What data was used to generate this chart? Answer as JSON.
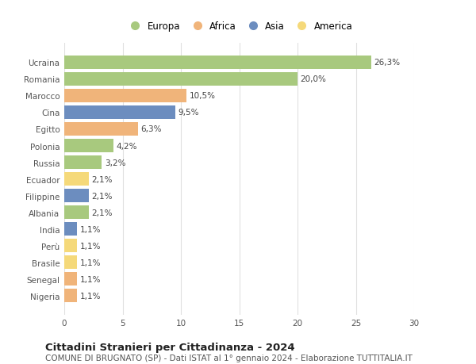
{
  "countries": [
    "Ucraina",
    "Romania",
    "Marocco",
    "Cina",
    "Egitto",
    "Polonia",
    "Russia",
    "Ecuador",
    "Filippine",
    "Albania",
    "India",
    "Perù",
    "Brasile",
    "Senegal",
    "Nigeria"
  ],
  "values": [
    26.3,
    20.0,
    10.5,
    9.5,
    6.3,
    4.2,
    3.2,
    2.1,
    2.1,
    2.1,
    1.1,
    1.1,
    1.1,
    1.1,
    1.1
  ],
  "labels": [
    "26,3%",
    "20,0%",
    "10,5%",
    "9,5%",
    "6,3%",
    "4,2%",
    "3,2%",
    "2,1%",
    "2,1%",
    "2,1%",
    "1,1%",
    "1,1%",
    "1,1%",
    "1,1%",
    "1,1%"
  ],
  "colors": [
    "#a8c97e",
    "#a8c97e",
    "#f0b47a",
    "#6c8dbf",
    "#f0b47a",
    "#a8c97e",
    "#a8c97e",
    "#f5d97a",
    "#6c8dbf",
    "#a8c97e",
    "#6c8dbf",
    "#f5d97a",
    "#f5d97a",
    "#f0b47a",
    "#f0b47a"
  ],
  "legend_labels": [
    "Europa",
    "Africa",
    "Asia",
    "America"
  ],
  "legend_colors": [
    "#a8c97e",
    "#f0b47a",
    "#6c8dbf",
    "#f5d97a"
  ],
  "xlim": [
    0,
    30
  ],
  "xticks": [
    0,
    5,
    10,
    15,
    20,
    25,
    30
  ],
  "title": "Cittadini Stranieri per Cittadinanza - 2024",
  "subtitle": "COMUNE DI BRUGNATO (SP) - Dati ISTAT al 1° gennaio 2024 - Elaborazione TUTTITALIA.IT",
  "bg_color": "#ffffff",
  "grid_color": "#e0e0e0",
  "bar_height": 0.82,
  "title_fontsize": 9.5,
  "subtitle_fontsize": 7.5,
  "label_fontsize": 7.5,
  "tick_fontsize": 7.5,
  "legend_fontsize": 8.5
}
